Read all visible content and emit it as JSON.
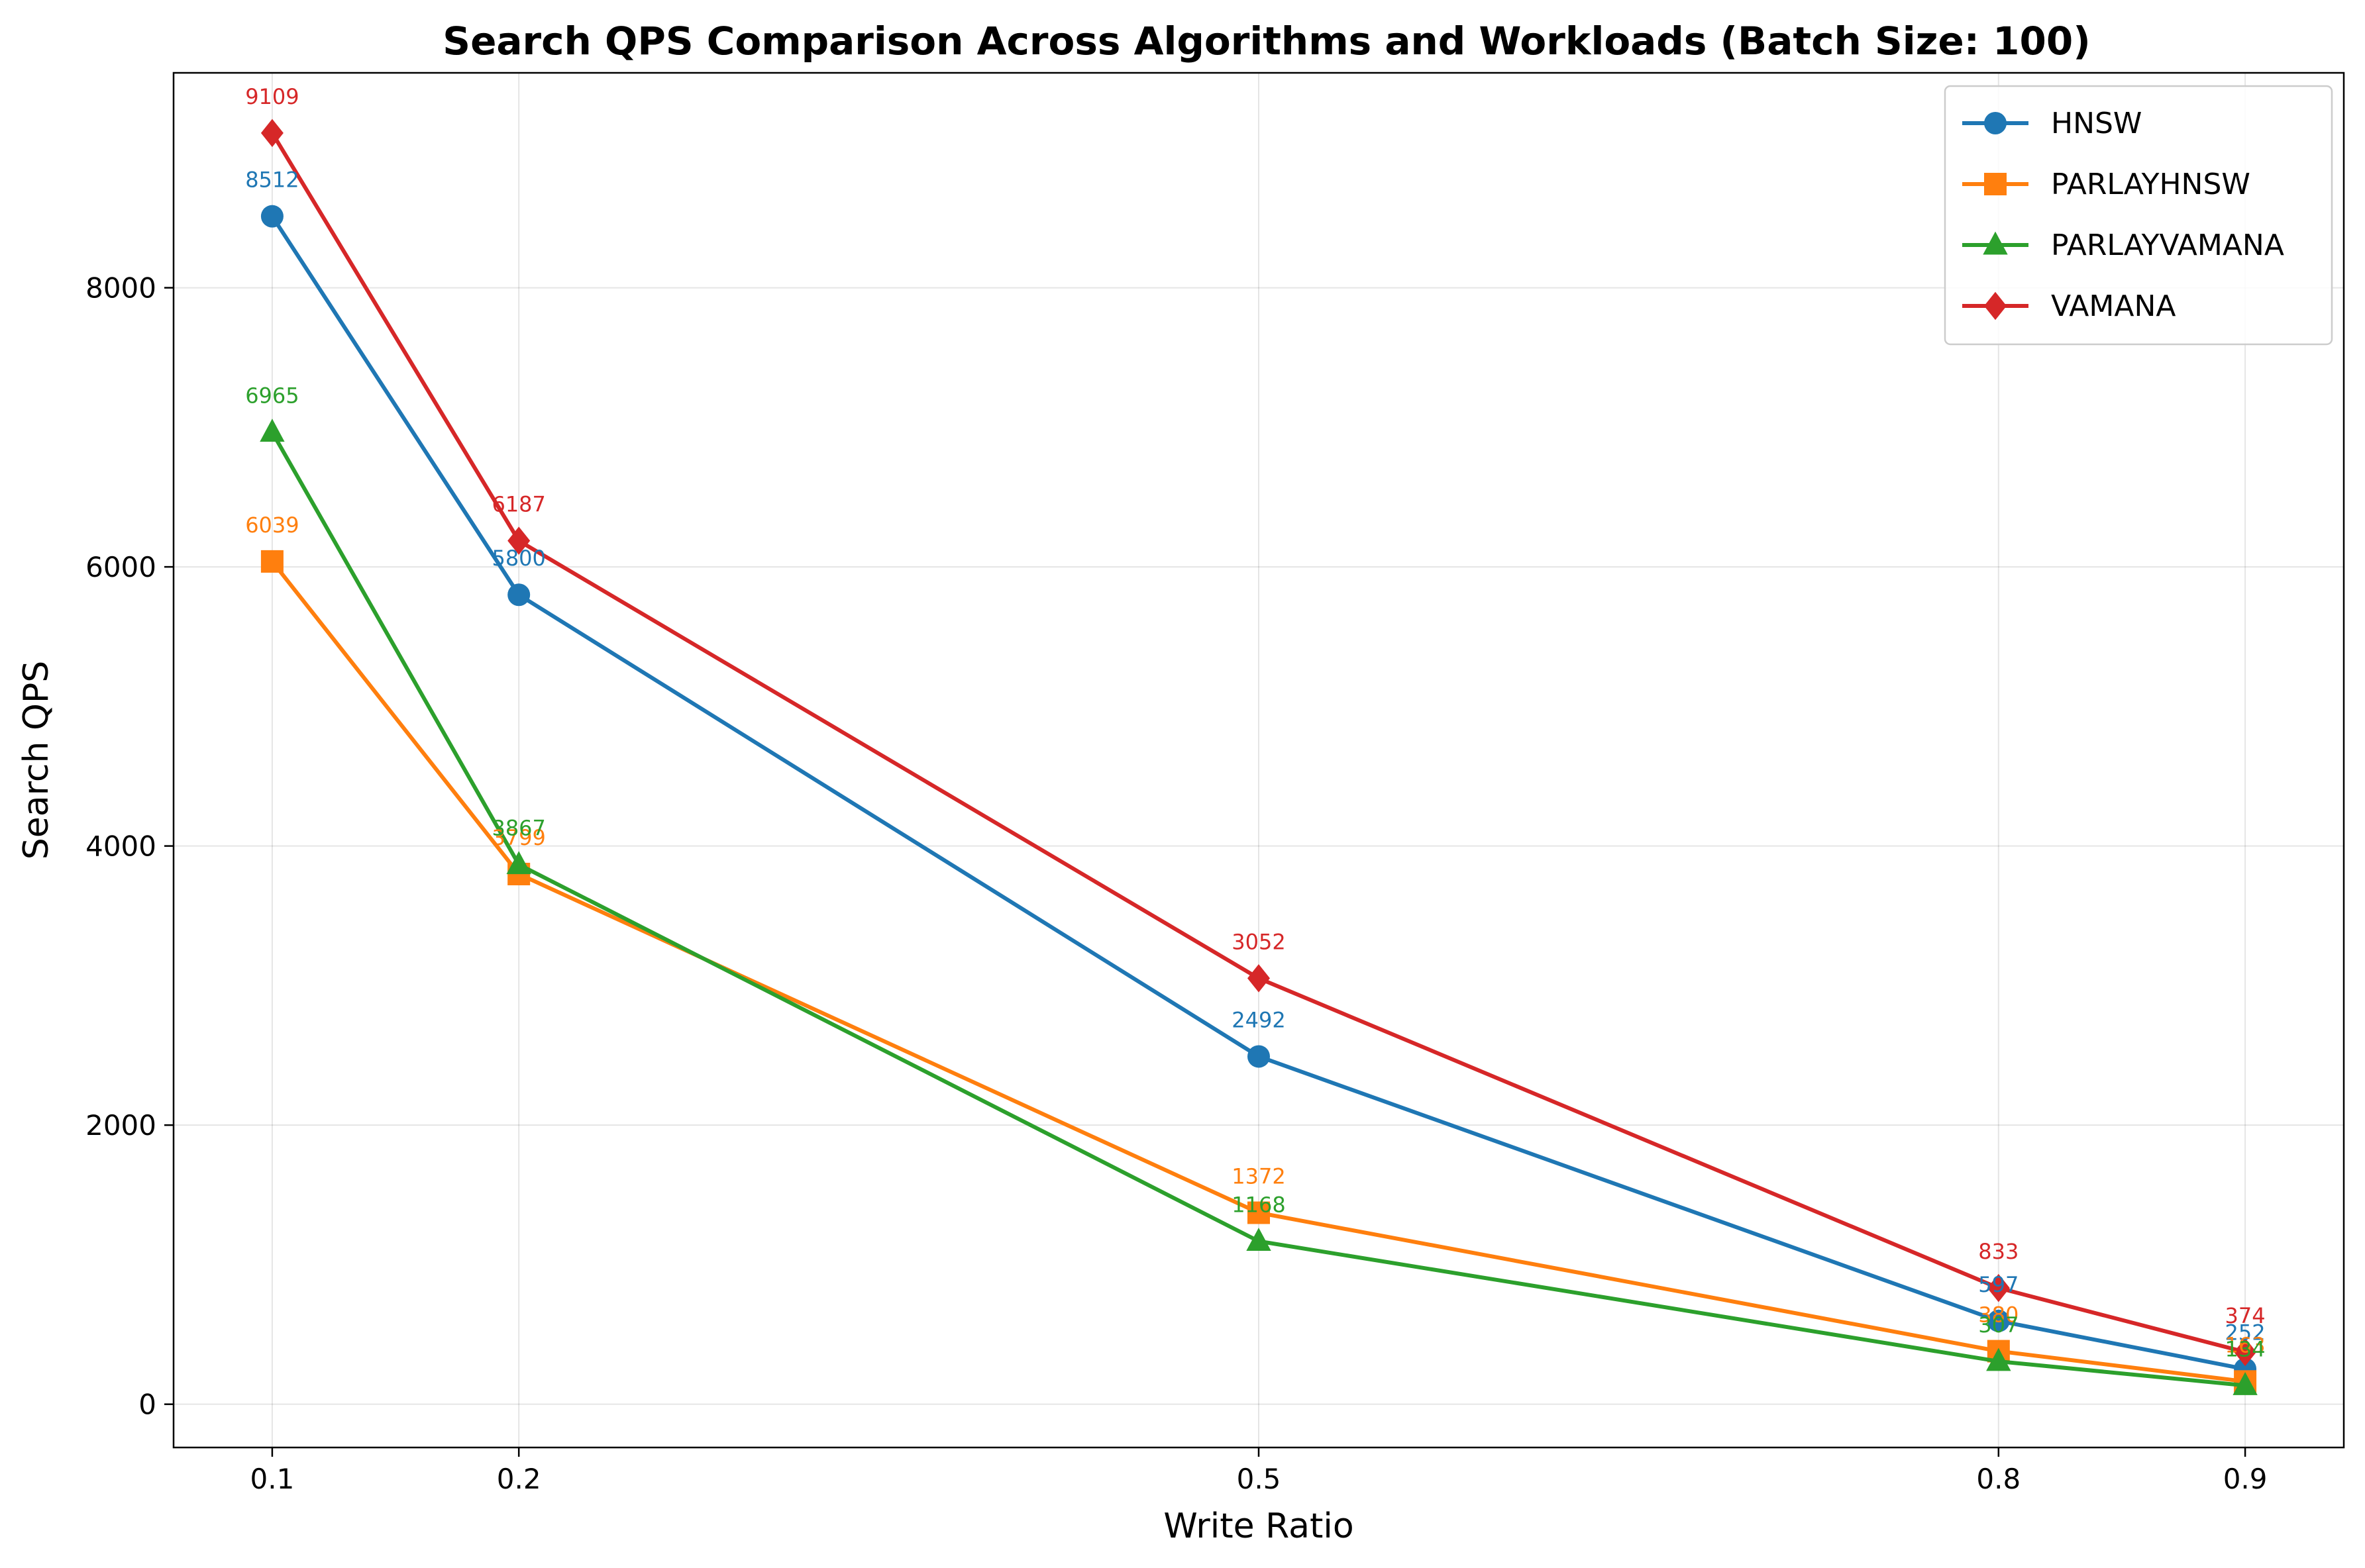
{
  "chart_data": {
    "type": "line",
    "title": "Search QPS Comparison Across Algorithms and Workloads (Batch Size: 100)",
    "xlabel": "Write Ratio",
    "ylabel": "Search QPS",
    "x": [
      0.1,
      0.2,
      0.5,
      0.8,
      0.9
    ],
    "x_tick_labels": [
      "0.1",
      "0.2",
      "0.5",
      "0.8",
      "0.9"
    ],
    "y_ticks": [
      0,
      2000,
      4000,
      6000,
      8000
    ],
    "y_tick_labels": [
      "0",
      "2000",
      "4000",
      "6000",
      "8000"
    ],
    "xlim": [
      0.06,
      0.94
    ],
    "ylim": [
      -310,
      9540
    ],
    "grid": true,
    "legend_position": "top-right",
    "series": [
      {
        "name": "HNSW",
        "color": "#1f77b4",
        "marker": "circle",
        "values": [
          8512,
          5800,
          2492,
          597,
          252
        ]
      },
      {
        "name": "PARLAYHNSW",
        "color": "#ff7f0e",
        "marker": "square",
        "values": [
          6039,
          3799,
          1372,
          380,
          163
        ]
      },
      {
        "name": "PARLAYVAMANA",
        "color": "#2ca02c",
        "marker": "triangle",
        "values": [
          6965,
          3867,
          1168,
          307,
          134
        ]
      },
      {
        "name": "VAMANA",
        "color": "#d62728",
        "marker": "diamond",
        "values": [
          9109,
          6187,
          3052,
          833,
          374
        ]
      }
    ]
  }
}
